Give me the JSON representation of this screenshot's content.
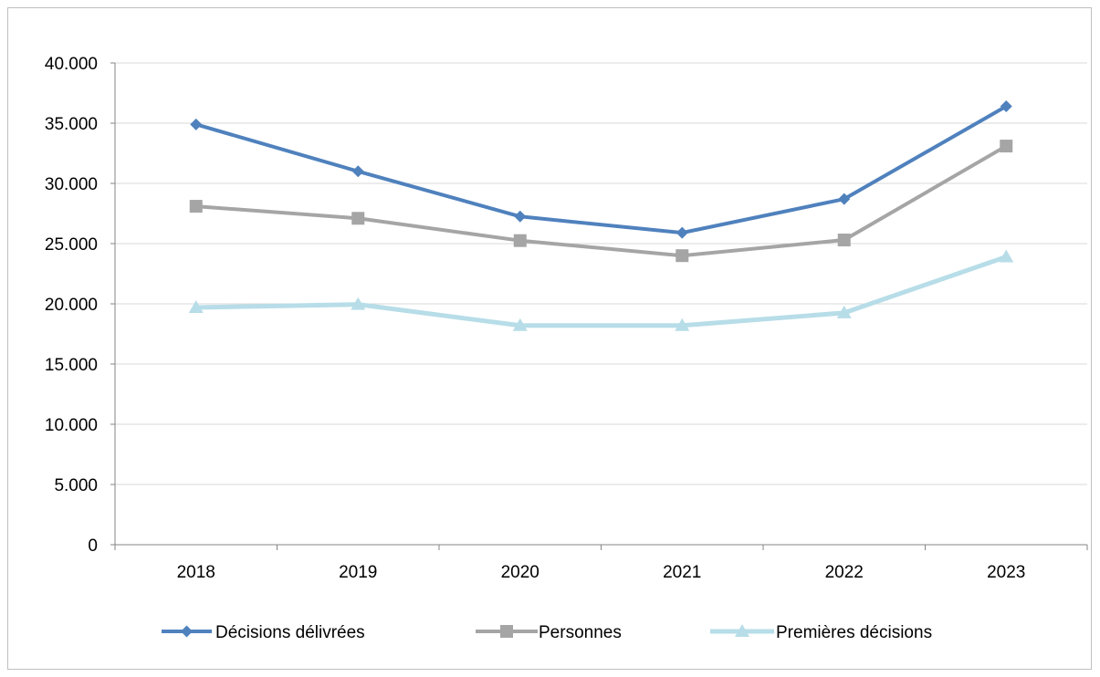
{
  "chart_data": {
    "type": "line",
    "title": "",
    "xlabel": "",
    "ylabel": "",
    "categories": [
      "2018",
      "2019",
      "2020",
      "2021",
      "2022",
      "2023"
    ],
    "ylim": [
      0,
      40000
    ],
    "y_ticks": [
      0,
      5000,
      10000,
      15000,
      20000,
      25000,
      30000,
      35000,
      40000
    ],
    "y_tick_labels": [
      "0",
      "5.000",
      "10.000",
      "15.000",
      "20.000",
      "25.000",
      "30.000",
      "35.000",
      "40.000"
    ],
    "grid": true,
    "legend_position": "bottom",
    "series": [
      {
        "name": "Décisions délivrées",
        "color": "#4f81bd",
        "marker": "diamond",
        "values": [
          34900,
          31000,
          27250,
          25900,
          28700,
          36400
        ]
      },
      {
        "name": "Personnes",
        "color": "#a5a5a5",
        "marker": "square",
        "values": [
          28100,
          27100,
          25250,
          24000,
          25300,
          33100
        ]
      },
      {
        "name": "Premières décisions",
        "color": "#b7dde8",
        "marker": "triangle",
        "values": [
          19700,
          19950,
          18200,
          18200,
          19250,
          23900
        ]
      }
    ]
  }
}
